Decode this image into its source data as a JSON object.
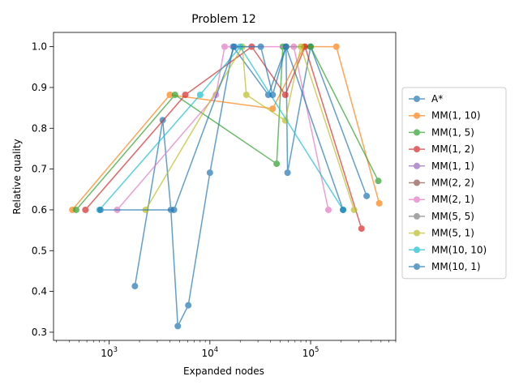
{
  "chart_data": {
    "type": "line",
    "title": "Problem 12",
    "xlabel": "Expanded nodes",
    "ylabel": "Relative quality",
    "xscale": "log",
    "xlim": [
      280,
      700000
    ],
    "ylim": [
      0.28,
      1.035
    ],
    "x_ticks": [
      {
        "value": 1000,
        "base": "10",
        "exp": "3"
      },
      {
        "value": 10000,
        "base": "10",
        "exp": "4"
      },
      {
        "value": 100000,
        "base": "10",
        "exp": "5"
      }
    ],
    "y_ticks": [
      0.3,
      0.4,
      0.5,
      0.6,
      0.7,
      0.8,
      0.9,
      1.0
    ],
    "y_tick_labels": [
      "0.3",
      "0.4",
      "0.5",
      "0.6",
      "0.7",
      "0.8",
      "0.9",
      "1.0"
    ],
    "legend_position": "center-right, outside plot",
    "series": [
      {
        "name": "A*",
        "color": "#1f77b4",
        "points": [
          [
            1800,
            0.413
          ],
          [
            3400,
            0.82
          ],
          [
            4100,
            0.6
          ],
          [
            4800,
            0.315
          ],
          [
            6100,
            0.366
          ],
          [
            10000,
            0.691
          ],
          [
            17000,
            1.0
          ],
          [
            38000,
            0.882
          ],
          [
            57000,
            1.0
          ],
          [
            59000,
            0.691
          ],
          [
            100000,
            1.0
          ],
          [
            360000,
            0.634
          ]
        ]
      },
      {
        "name": "MM(1, 10)",
        "color": "#ff7f0e",
        "points": [
          [
            430,
            0.6
          ],
          [
            4000,
            0.882
          ],
          [
            42000,
            0.848
          ],
          [
            86000,
            1.0
          ],
          [
            180000,
            1.0
          ],
          [
            480000,
            0.616
          ]
        ]
      },
      {
        "name": "MM(1, 5)",
        "color": "#2ca02c",
        "points": [
          [
            470,
            0.6
          ],
          [
            4500,
            0.882
          ],
          [
            46000,
            0.713
          ],
          [
            53000,
            1.0
          ],
          [
            100000,
            1.0
          ],
          [
            470000,
            0.671
          ]
        ]
      },
      {
        "name": "MM(1, 2)",
        "color": "#d62728",
        "points": [
          [
            580,
            0.6
          ],
          [
            5700,
            0.882
          ],
          [
            26000,
            1.0
          ],
          [
            56000,
            0.882
          ],
          [
            88000,
            1.0
          ],
          [
            320000,
            0.554
          ]
        ]
      },
      {
        "name": "MM(1, 1)",
        "color": "#9467bd",
        "points": []
      },
      {
        "name": "MM(2, 2)",
        "color": "#8c564b",
        "points": []
      },
      {
        "name": "MM(2, 1)",
        "color": "#e377c2",
        "points": [
          [
            1200,
            0.6
          ],
          [
            11500,
            0.882
          ],
          [
            14000,
            1.0
          ],
          [
            68000,
            1.0
          ],
          [
            150000,
            0.6
          ]
        ]
      },
      {
        "name": "MM(5, 5)",
        "color": "#7f7f7f",
        "points": []
      },
      {
        "name": "MM(5, 1)",
        "color": "#bcbd22",
        "points": [
          [
            2300,
            0.6
          ],
          [
            21000,
            1.0
          ],
          [
            23000,
            0.882
          ],
          [
            56000,
            0.819
          ],
          [
            80000,
            1.0
          ],
          [
            270000,
            0.6
          ]
        ]
      },
      {
        "name": "MM(10, 10)",
        "color": "#17becf",
        "points": [
          [
            800,
            0.6
          ],
          [
            8000,
            0.882
          ],
          [
            20000,
            1.0
          ],
          [
            210000,
            0.6
          ]
        ]
      },
      {
        "name": "MM(10, 1)",
        "color": "#1f77b4",
        "points": [
          [
            820,
            0.6
          ],
          [
            4400,
            0.6
          ],
          [
            17500,
            1.0
          ],
          [
            32000,
            1.0
          ],
          [
            42000,
            0.882
          ],
          [
            57000,
            1.0
          ],
          [
            210000,
            0.6
          ]
        ]
      }
    ]
  }
}
